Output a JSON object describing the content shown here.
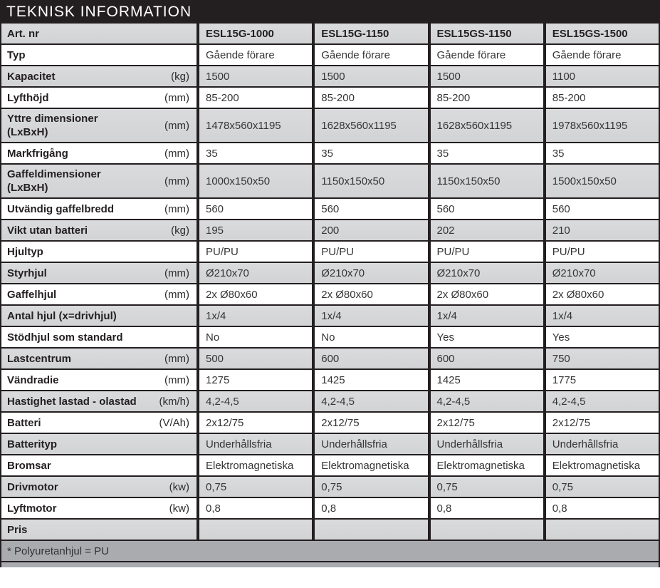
{
  "title": "TEKNISK INFORMATION",
  "colors": {
    "title_bar_bg": "#231f20",
    "title_text": "#ffffff",
    "row_gray": "#d6d7d9",
    "row_white": "#ffffff",
    "footer_gray": "#a9abae",
    "border_black": "#231f20"
  },
  "table": {
    "header": {
      "label": "Art. nr",
      "columns": [
        "ESL15G-1000",
        "ESL15G-1150",
        "ESL15GS-1150",
        "ESL15GS-1500"
      ]
    },
    "rows": [
      {
        "label": "Typ",
        "unit": "",
        "values": [
          "Gående förare",
          "Gående förare",
          "Gående förare",
          "Gående förare"
        ]
      },
      {
        "label": "Kapacitet",
        "unit": "(kg)",
        "values": [
          "1500",
          "1500",
          "1500",
          "1100"
        ]
      },
      {
        "label": "Lyfthöjd",
        "unit": "(mm)",
        "values": [
          "85-200",
          "85-200",
          "85-200",
          "85-200"
        ]
      },
      {
        "label": "Yttre dimensioner (LxBxH)",
        "unit": "(mm)",
        "values": [
          "1478x560x1195",
          "1628x560x1195",
          "1628x560x1195",
          "1978x560x1195"
        ]
      },
      {
        "label": "Markfrigång",
        "unit": "(mm)",
        "values": [
          "35",
          "35",
          "35",
          "35"
        ]
      },
      {
        "label": "Gaffeldimensioner (LxBxH)",
        "unit": "(mm)",
        "values": [
          "1000x150x50",
          "1150x150x50",
          "1150x150x50",
          "1500x150x50"
        ]
      },
      {
        "label": "Utvändig gaffelbredd",
        "unit": "(mm)",
        "values": [
          "560",
          "560",
          "560",
          "560"
        ]
      },
      {
        "label": "Vikt utan batteri",
        "unit": "(kg)",
        "values": [
          "195",
          "200",
          "202",
          "210"
        ]
      },
      {
        "label": "Hjultyp",
        "unit": "",
        "values": [
          "PU/PU",
          "PU/PU",
          "PU/PU",
          "PU/PU"
        ]
      },
      {
        "label": "Styrhjul",
        "unit": "(mm)",
        "values": [
          "Ø210x70",
          "Ø210x70",
          "Ø210x70",
          "Ø210x70"
        ]
      },
      {
        "label": "Gaffelhjul",
        "unit": "(mm)",
        "values": [
          "2x Ø80x60",
          "2x Ø80x60",
          "2x Ø80x60",
          "2x Ø80x60"
        ]
      },
      {
        "label": "Antal hjul (x=drivhjul)",
        "unit": "",
        "values": [
          "1x/4",
          "1x/4",
          "1x/4",
          "1x/4"
        ]
      },
      {
        "label": "Stödhjul som standard",
        "unit": "",
        "values": [
          "No",
          "No",
          "Yes",
          "Yes"
        ]
      },
      {
        "label": "Lastcentrum",
        "unit": "(mm)",
        "values": [
          "500",
          "600",
          "600",
          "750"
        ]
      },
      {
        "label": "Vändradie",
        "unit": "(mm)",
        "values": [
          "1275",
          "1425",
          "1425",
          "1775"
        ]
      },
      {
        "label": "Hastighet lastad - olastad",
        "unit": "(km/h)",
        "values": [
          "4,2-4,5",
          "4,2-4,5",
          "4,2-4,5",
          "4,2-4,5"
        ]
      },
      {
        "label": "Batteri",
        "unit": "(V/Ah)",
        "values": [
          "2x12/75",
          "2x12/75",
          "2x12/75",
          "2x12/75"
        ]
      },
      {
        "label": "Batterityp",
        "unit": "",
        "values": [
          "Underhållsfria",
          "Underhållsfria",
          "Underhållsfria",
          "Underhållsfria"
        ]
      },
      {
        "label": "Bromsar",
        "unit": "",
        "values": [
          "Elektromagnetiska",
          "Elektromagnetiska",
          "Elektromagnetiska",
          "Elektromagnetiska"
        ]
      },
      {
        "label": "Drivmotor",
        "unit": "(kw)",
        "values": [
          "0,75",
          "0,75",
          "0,75",
          "0,75"
        ]
      },
      {
        "label": "Lyftmotor",
        "unit": "(kw)",
        "values": [
          "0,8",
          "0,8",
          "0,8",
          "0,8"
        ]
      },
      {
        "label": "Pris",
        "unit": "",
        "values": [
          "",
          "",
          "",
          ""
        ]
      }
    ],
    "footer_note": "* Polyuretanhjul = PU"
  }
}
